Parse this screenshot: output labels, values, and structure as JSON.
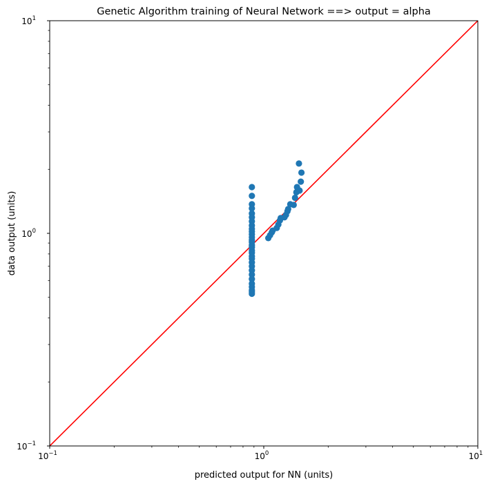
{
  "chart_data": {
    "type": "scatter",
    "title": "Genetic Algorithm training of Neural Network ==> output = alpha",
    "xlabel": "predicted output for NN (units)",
    "ylabel": "data output (units)",
    "xscale": "log",
    "yscale": "log",
    "xlim": [
      0.1,
      10
    ],
    "ylim": [
      0.1,
      10
    ],
    "grid": false,
    "x_ticks": [
      {
        "value": 0.1,
        "base": "10",
        "exp": "−1"
      },
      {
        "value": 1,
        "base": "10",
        "exp": "0"
      },
      {
        "value": 10,
        "base": "10",
        "exp": "1"
      }
    ],
    "y_ticks": [
      {
        "value": 0.1,
        "base": "10",
        "exp": "−1"
      },
      {
        "value": 1,
        "base": "10",
        "exp": "0"
      },
      {
        "value": 10,
        "base": "10",
        "exp": "1"
      }
    ],
    "series": [
      {
        "type": "scatter",
        "color": "#1f77b4",
        "points": [
          [
            0.88,
            1.65
          ],
          [
            0.88,
            1.5
          ],
          [
            0.88,
            1.37
          ],
          [
            0.88,
            1.31
          ],
          [
            0.88,
            1.24
          ],
          [
            0.88,
            1.19
          ],
          [
            0.88,
            1.14
          ],
          [
            0.88,
            1.09
          ],
          [
            0.88,
            1.05
          ],
          [
            0.88,
            1.02
          ],
          [
            0.88,
            0.99
          ],
          [
            0.88,
            0.96
          ],
          [
            0.88,
            0.93
          ],
          [
            0.88,
            0.91
          ],
          [
            0.88,
            0.88
          ],
          [
            0.88,
            0.86
          ],
          [
            0.88,
            0.83
          ],
          [
            0.88,
            0.81
          ],
          [
            0.88,
            0.78
          ],
          [
            0.88,
            0.76
          ],
          [
            0.88,
            0.73
          ],
          [
            0.88,
            0.7
          ],
          [
            0.88,
            0.67
          ],
          [
            0.88,
            0.64
          ],
          [
            0.88,
            0.61
          ],
          [
            0.88,
            0.58
          ],
          [
            0.88,
            0.56
          ],
          [
            0.88,
            0.54
          ],
          [
            0.88,
            0.53
          ],
          [
            0.88,
            0.52
          ],
          [
            1.05,
            0.95
          ],
          [
            1.07,
            0.98
          ],
          [
            1.09,
            1.01
          ],
          [
            1.1,
            1.03
          ],
          [
            1.15,
            1.06
          ],
          [
            1.17,
            1.1
          ],
          [
            1.19,
            1.15
          ],
          [
            1.2,
            1.18
          ],
          [
            1.25,
            1.19
          ],
          [
            1.27,
            1.22
          ],
          [
            1.29,
            1.27
          ],
          [
            1.3,
            1.3
          ],
          [
            1.33,
            1.37
          ],
          [
            1.38,
            1.36
          ],
          [
            1.4,
            1.47
          ],
          [
            1.42,
            1.56
          ],
          [
            1.43,
            1.65
          ],
          [
            1.47,
            1.59
          ],
          [
            1.49,
            1.75
          ],
          [
            1.5,
            1.93
          ],
          [
            1.46,
            2.13
          ]
        ]
      },
      {
        "type": "line",
        "color": "#ff0000",
        "points": [
          [
            0.1,
            0.1
          ],
          [
            10,
            10
          ]
        ]
      }
    ]
  }
}
